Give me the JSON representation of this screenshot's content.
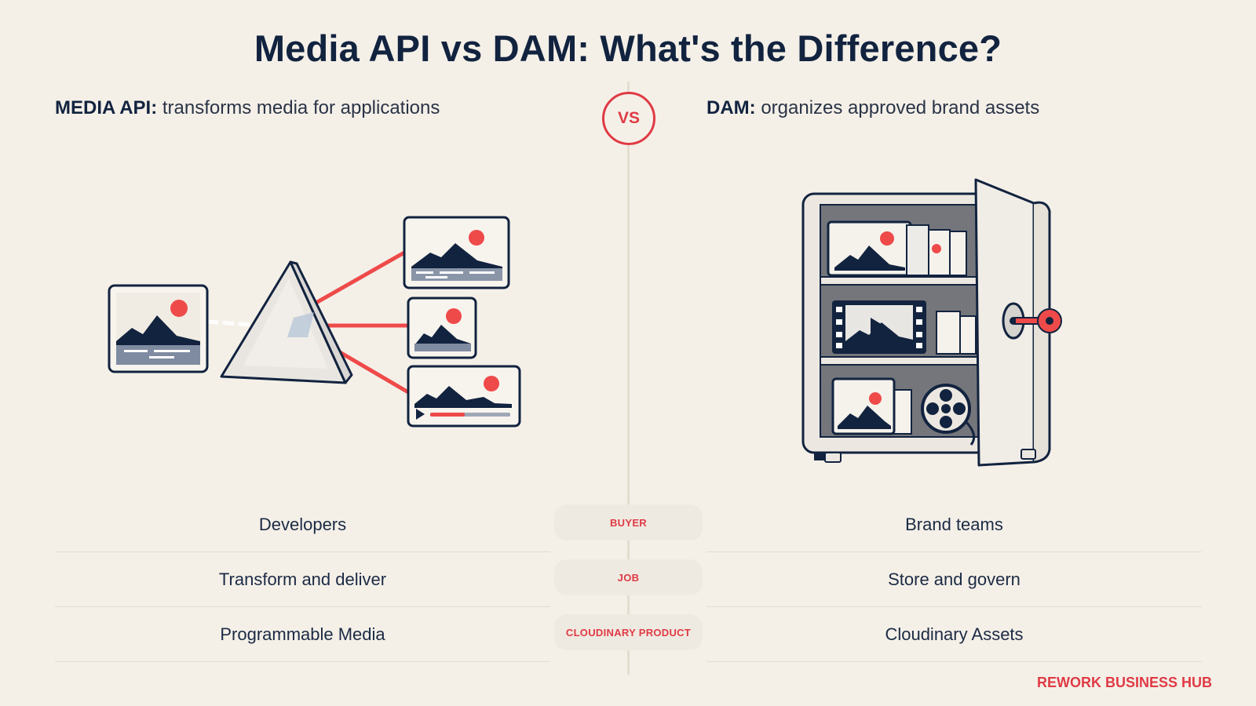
{
  "title": "Media API vs DAM: What's the Difference?",
  "vs_label": "VS",
  "left": {
    "heading_bold": "MEDIA API:",
    "heading_rest": "transforms media for applications",
    "rows": [
      "Developers",
      "Transform and deliver",
      "Programmable Media"
    ]
  },
  "right": {
    "heading_bold": "DAM:",
    "heading_rest": "organizes approved brand assets",
    "rows": [
      "Brand teams",
      "Store and govern",
      "Cloudinary Assets"
    ]
  },
  "categories": [
    "BUYER",
    "JOB",
    "CLOUDINARY PRODUCT"
  ],
  "brand": "REWORK BUSINESS HUB",
  "colors": {
    "navy": "#12233f",
    "accent": "#e03a45",
    "background": "#f4f0e8"
  }
}
